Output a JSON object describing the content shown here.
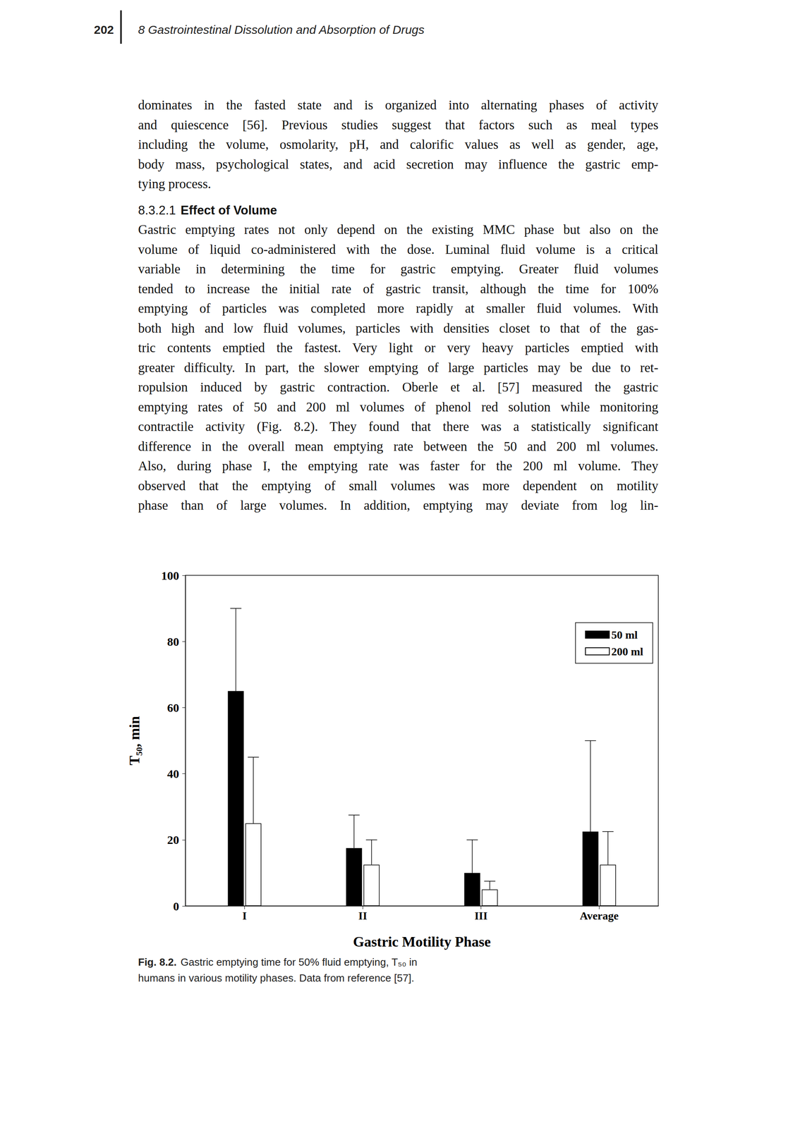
{
  "header": {
    "page": "202",
    "title": "8 Gastrointestinal Dissolution and Absorption of Drugs"
  },
  "body": [
    {
      "type": "paragraph",
      "continues": false,
      "lines": [
        "dominates in the fasted state and is organized into alternating phases of activity",
        "and quiescence [56]. Previous studies suggest that factors such as meal types",
        "including the volume, osmolarity, pH, and calorific values as well as gender, age,",
        "body mass, psychological states, and acid secretion may influence the gastric emp-",
        "tying process."
      ]
    },
    {
      "type": "heading",
      "number": "8.3.2.1",
      "text": "Effect of Volume"
    },
    {
      "type": "paragraph",
      "continues": true,
      "lines": [
        "Gastric emptying rates not only depend on the existing MMC phase but also on the",
        "volume of liquid co-administered with the dose. Luminal fluid volume is a critical",
        "variable in determining the time for gastric emptying. Greater fluid volumes",
        "tended to increase the initial rate of gastric transit, although the time for 100%",
        "emptying of particles was completed more rapidly at smaller fluid volumes. With",
        "both high and low fluid volumes, particles with densities closet to that of the gas-",
        "tric contents emptied the fastest. Very light or very heavy particles emptied with",
        "greater difficulty. In part, the slower emptying of large particles may be due to ret-",
        "ropulsion induced by gastric contraction. Oberle et al. [57] measured the gastric",
        "emptying rates of 50 and 200 ml volumes of phenol red solution while monitoring",
        "contractile activity (Fig. 8.2). They found that there was a statistically significant",
        "difference in the overall mean emptying rate between the 50 and 200 ml volumes.",
        "Also, during phase I, the emptying rate was faster for the 200 ml volume. They",
        "observed that the emptying of small volumes was more dependent on motility",
        "phase than of large volumes. In addition, emptying may deviate from log lin-"
      ]
    }
  ],
  "chart_data": {
    "type": "bar",
    "x_label": "Gastric Motility Phase",
    "y_label": "T₅₀, min",
    "categories": [
      "I",
      "II",
      "III",
      "Average"
    ],
    "series": [
      {
        "name": "50 ml",
        "color": "#000000",
        "values": [
          65,
          17.5,
          10,
          22.5
        ],
        "errors": [
          25,
          10,
          10,
          27.5
        ]
      },
      {
        "name": "200 ml",
        "color": "#ffffff",
        "values": [
          25,
          12.5,
          5,
          12.5
        ],
        "errors": [
          20,
          7.5,
          2.5,
          10
        ]
      }
    ],
    "ylim": [
      0,
      100
    ],
    "yticks": [
      0,
      20,
      40,
      60,
      80,
      100
    ],
    "grid": false,
    "legend": "upper right"
  },
  "caption": {
    "label": "Fig. 8.2.",
    "lines": [
      "Gastric emptying time for 50% fluid emptying, T₅₀ in",
      "humans in various motility phases. Data from reference [57]."
    ]
  }
}
